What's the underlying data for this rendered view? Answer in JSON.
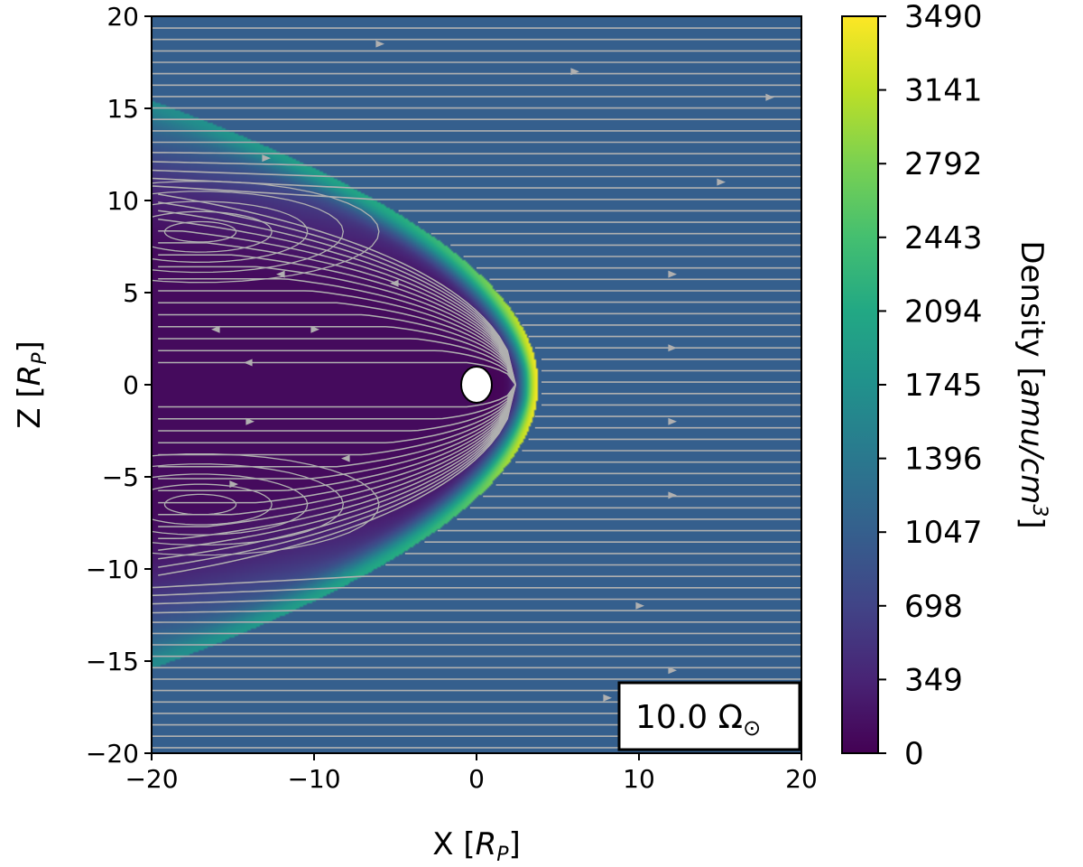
{
  "chart_data": {
    "type": "heatmap",
    "title": "",
    "xlabel_main": "X [",
    "xlabel_sym": "R",
    "xlabel_sub": "P",
    "xlabel_end": "]",
    "ylabel_main": "Z [",
    "ylabel_sym": "R",
    "ylabel_sub": "P",
    "ylabel_end": "]",
    "xlim": [
      -20,
      20
    ],
    "ylim": [
      -20,
      20
    ],
    "x_ticks": [
      -20,
      -10,
      0,
      10,
      20
    ],
    "x_tick_labels": [
      "−20",
      "−10",
      "0",
      "10",
      "20"
    ],
    "y_ticks": [
      -20,
      -15,
      -10,
      -5,
      0,
      5,
      10,
      15,
      20
    ],
    "y_tick_labels": [
      "−20",
      "−15",
      "−10",
      "−5",
      "0",
      "5",
      "10",
      "15",
      "20"
    ],
    "grid": false,
    "colormap": "viridis",
    "colorbar": {
      "label_main": "Density [",
      "label_unit": "amu/cm",
      "label_exp": "3",
      "label_end": "]",
      "range": [
        0,
        3490
      ],
      "ticks": [
        0,
        349,
        698,
        1047,
        1396,
        1745,
        2094,
        2443,
        2792,
        3141,
        3490
      ],
      "tick_labels": [
        "0",
        "349",
        "698",
        "1047",
        "1396",
        "1745",
        "2094",
        "2443",
        "2792",
        "3141",
        "3490"
      ]
    },
    "field": {
      "ambient_density": 1047,
      "cavity_density": 20,
      "shock_peak_density": 3490,
      "bow_shock_nose_x": 3.8,
      "planet_center": [
        0,
        0
      ],
      "planet_radius": 1,
      "streamline_color": "#b0b0b0"
    },
    "annotation": {
      "text": "10.0 Ω",
      "symbol": "⊙"
    }
  }
}
